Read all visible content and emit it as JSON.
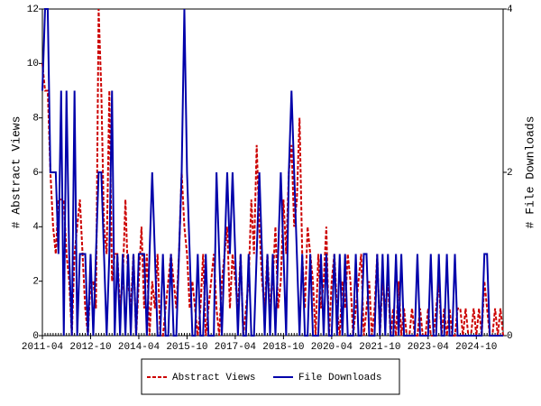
{
  "chart_data": {
    "type": "line",
    "categories": [
      "2011-04",
      null,
      null,
      null,
      null,
      null,
      null,
      null,
      null,
      null,
      null,
      null,
      null,
      null,
      null,
      null,
      null,
      null,
      "2012-10",
      null,
      null,
      null,
      null,
      null,
      null,
      null,
      null,
      null,
      null,
      null,
      null,
      null,
      null,
      null,
      null,
      null,
      "2014-04",
      null,
      null,
      null,
      null,
      null,
      null,
      null,
      null,
      null,
      null,
      null,
      null,
      null,
      null,
      null,
      null,
      null,
      "2015-10",
      null,
      null,
      null,
      null,
      null,
      null,
      null,
      null,
      null,
      null,
      null,
      null,
      null,
      null,
      null,
      null,
      null,
      "2017-04",
      null,
      null,
      null,
      null,
      null,
      null,
      null,
      null,
      null,
      null,
      null,
      null,
      null,
      null,
      null,
      null,
      null,
      "2018-10",
      null,
      null,
      null,
      null,
      null,
      null,
      null,
      null,
      null,
      null,
      null,
      null,
      null,
      null,
      null,
      null,
      null,
      "2020-04",
      null,
      null,
      null,
      null,
      null,
      null,
      null,
      null,
      null,
      null,
      null,
      null,
      null,
      null,
      null,
      null,
      null,
      "2021-10",
      null,
      null,
      null,
      null,
      null,
      null,
      null,
      null,
      null,
      null,
      null,
      null,
      null,
      null,
      null,
      null,
      null,
      "2023-04",
      null,
      null,
      null,
      null,
      null,
      null,
      null,
      null,
      null,
      null,
      null,
      null,
      null,
      null,
      null,
      null,
      null,
      "2024-10",
      null,
      null,
      null,
      null,
      null,
      null,
      null,
      null,
      null,
      null
    ],
    "series": [
      {
        "name": "Abstract Views",
        "color": "#cc0000",
        "dash": true,
        "axis": "y",
        "values": [
          10,
          9,
          9,
          6,
          4,
          3,
          5,
          5,
          5,
          3,
          2,
          0,
          3,
          4,
          5,
          3,
          1,
          0,
          2,
          2,
          1,
          12,
          9,
          4,
          3,
          9,
          2,
          3,
          3,
          1,
          2,
          5,
          2,
          1,
          3,
          0,
          2,
          4,
          1,
          3,
          0,
          2,
          1,
          3,
          0,
          0,
          1,
          2,
          3,
          2,
          1,
          3,
          6,
          4,
          3,
          1,
          2,
          1,
          0,
          1,
          3,
          0,
          1,
          2,
          3,
          1,
          0,
          2,
          3,
          4,
          1,
          3,
          2,
          1,
          3,
          0,
          1,
          2,
          5,
          3,
          7,
          4,
          2,
          1,
          3,
          1,
          2,
          4,
          1,
          2,
          5,
          3,
          6,
          7,
          4,
          5,
          8,
          3,
          1,
          4,
          3,
          2,
          0,
          3,
          1,
          2,
          4,
          0,
          2,
          3,
          1,
          0,
          2,
          1,
          3,
          2,
          0,
          1,
          2,
          3,
          0,
          1,
          2,
          0,
          1,
          3,
          0,
          2,
          1,
          2,
          0,
          1,
          0,
          2,
          0,
          1,
          0,
          0,
          1,
          0,
          0,
          1,
          0,
          0,
          1,
          0,
          0,
          1,
          2,
          0,
          1,
          0,
          1,
          0,
          0,
          1,
          1,
          0,
          1,
          0,
          0,
          1,
          0,
          1,
          0,
          2,
          1,
          0,
          0,
          1,
          0,
          1,
          0
        ]
      },
      {
        "name": "File Downloads",
        "color": "#0000aa",
        "dash": false,
        "axis": "y2",
        "values": [
          3,
          4,
          4,
          2,
          2,
          2,
          1,
          3,
          0,
          3,
          1,
          0,
          3,
          0,
          1,
          1,
          1,
          0,
          1,
          0,
          1,
          2,
          2,
          1,
          0,
          1,
          3,
          0,
          1,
          0,
          1,
          0,
          1,
          0,
          1,
          0,
          1,
          1,
          1,
          0,
          1,
          2,
          1,
          0,
          0,
          1,
          0,
          0,
          1,
          0,
          0,
          1,
          2,
          4,
          2,
          1,
          0,
          0,
          1,
          0,
          0,
          1,
          0,
          0,
          0,
          2,
          1,
          0,
          1,
          2,
          1,
          2,
          1,
          0,
          1,
          0,
          0,
          1,
          0,
          0,
          1,
          2,
          1,
          0,
          1,
          0,
          1,
          0,
          1,
          2,
          1,
          0,
          2,
          3,
          2,
          1,
          0,
          1,
          0,
          0,
          1,
          0,
          0,
          0,
          1,
          0,
          1,
          0,
          0,
          1,
          0,
          1,
          0,
          1,
          0,
          0,
          0,
          1,
          0,
          0,
          1,
          1,
          0,
          0,
          0,
          1,
          0,
          1,
          0,
          1,
          0,
          0,
          1,
          0,
          1,
          0,
          0,
          0,
          0,
          0,
          1,
          0,
          0,
          0,
          0,
          1,
          0,
          0,
          1,
          0,
          0,
          1,
          0,
          0,
          1,
          0,
          0,
          0,
          0,
          0,
          0,
          0,
          0,
          0,
          0,
          1,
          1,
          0,
          0,
          0,
          0,
          0,
          0
        ]
      }
    ],
    "y_label": "# Abstract Views",
    "y2_label": "# File Downloads",
    "ylim": [
      0,
      12
    ],
    "yticks": [
      0,
      2,
      4,
      6,
      8,
      10,
      12
    ],
    "y2lim": [
      0,
      4
    ],
    "y2ticks": [
      0,
      2,
      4
    ],
    "legend": "bottom"
  }
}
